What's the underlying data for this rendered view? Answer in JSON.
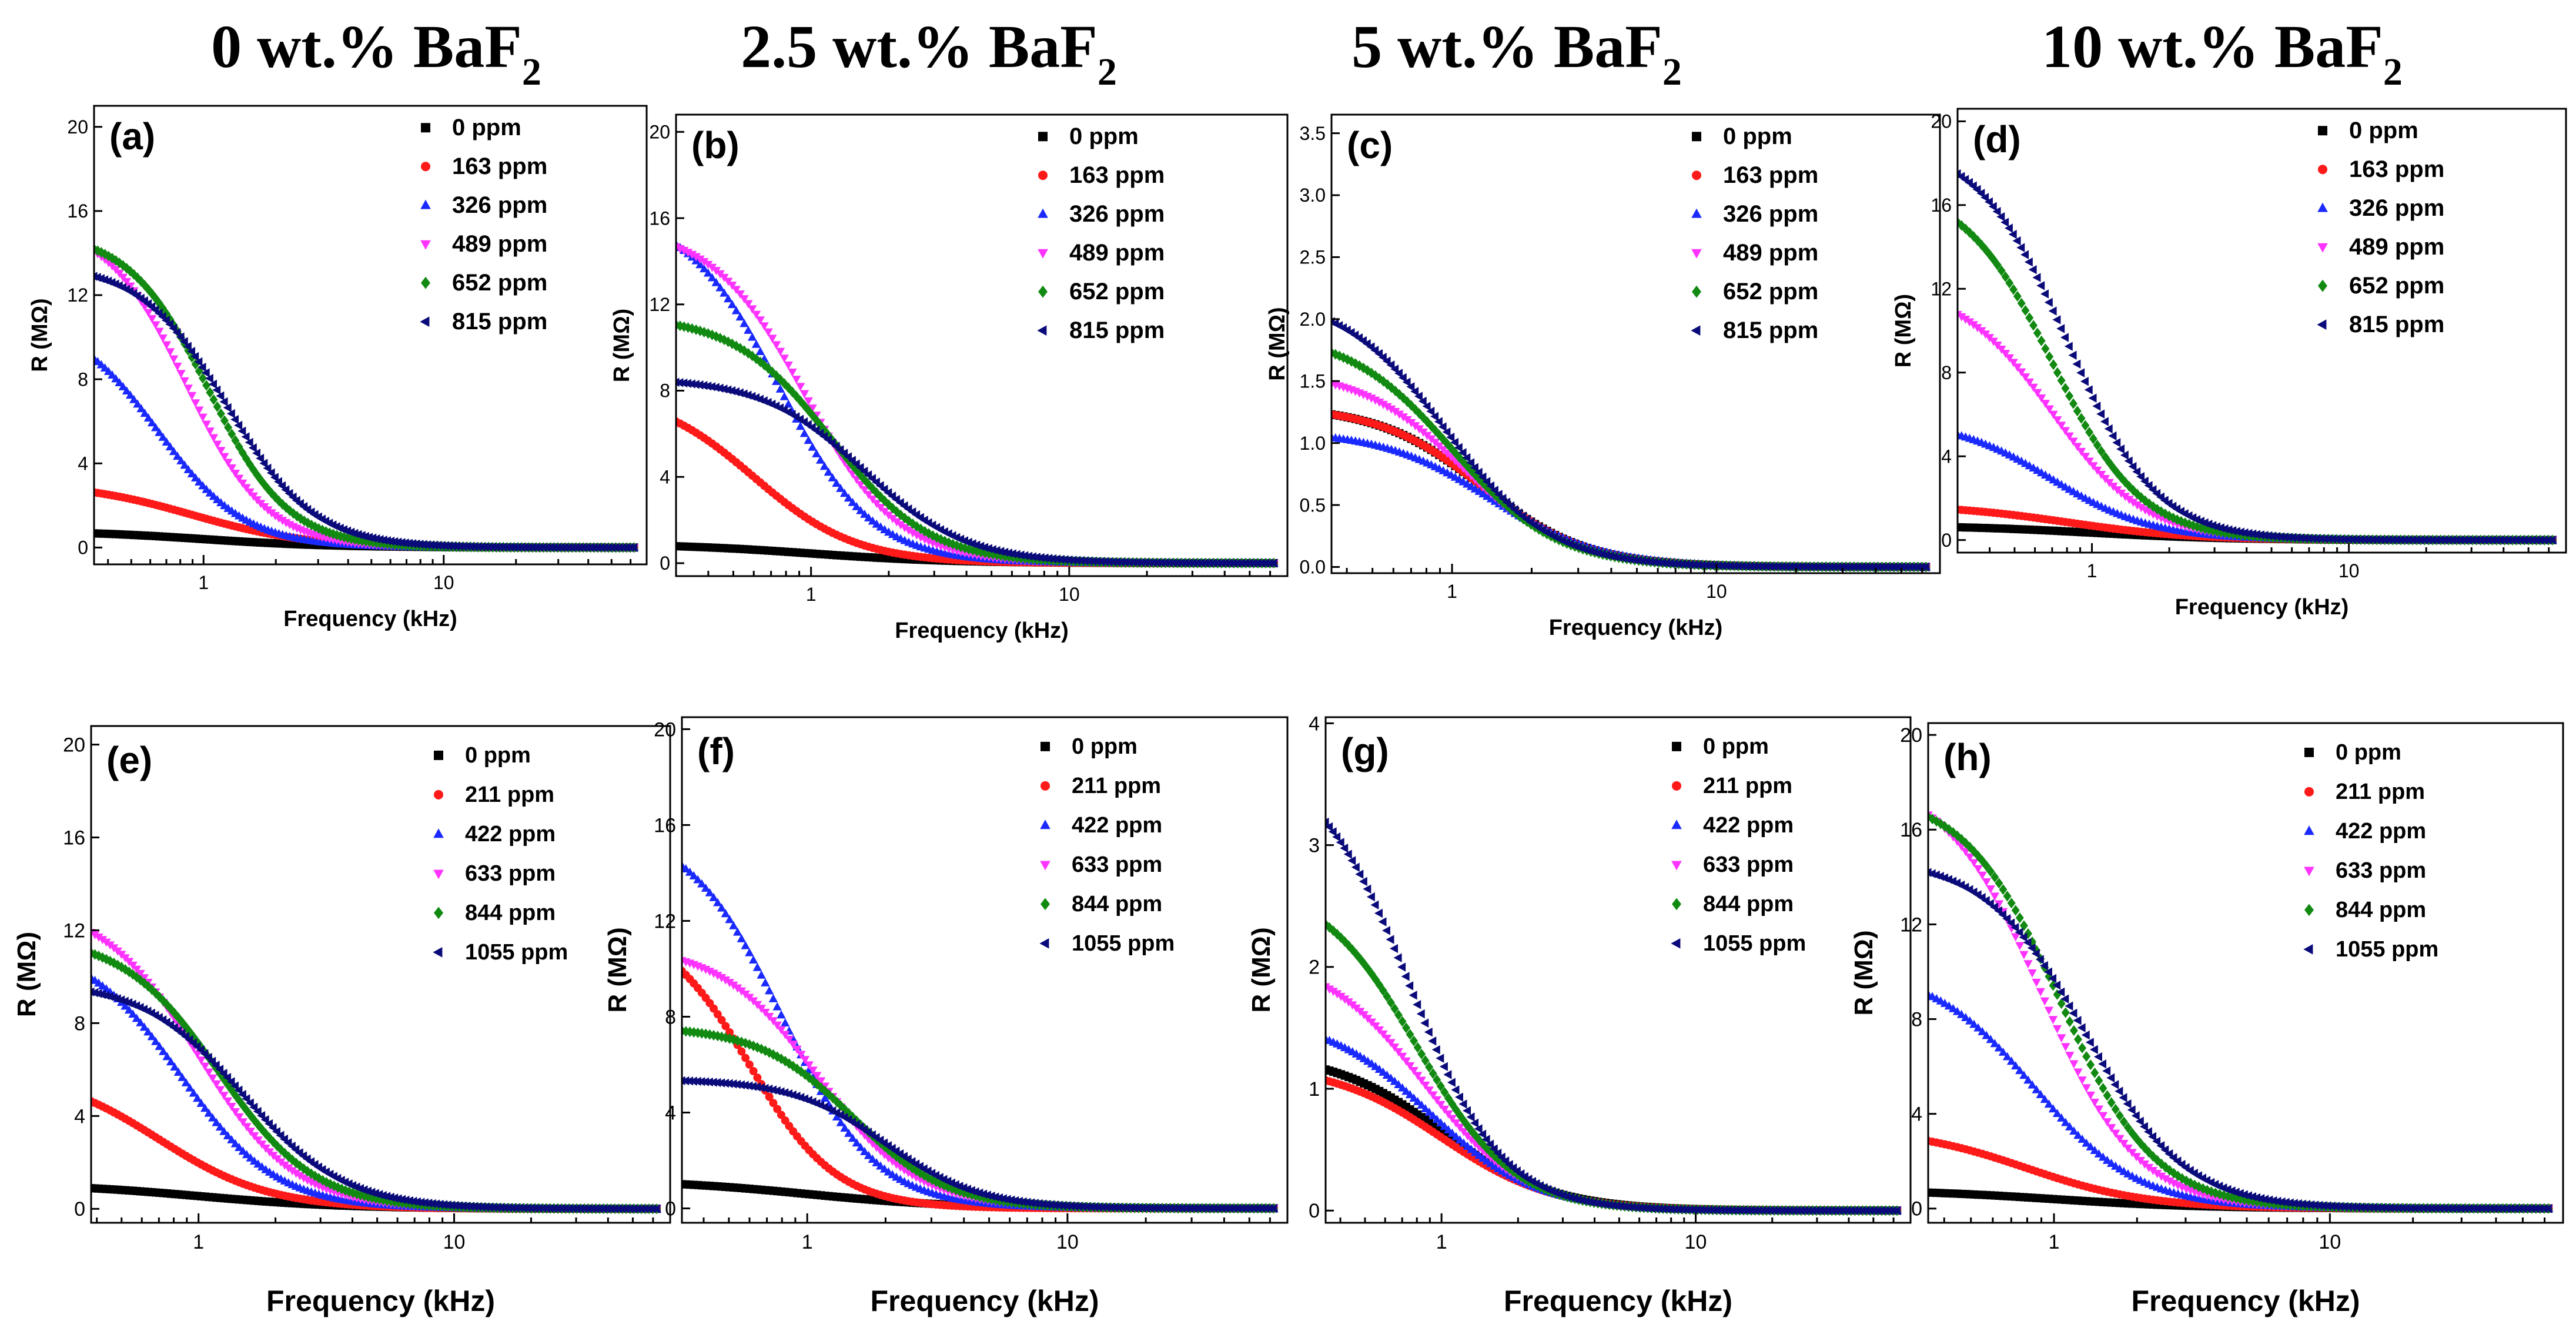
{
  "column_titles": [
    {
      "main": "0 wt.% BaF",
      "sub": "2"
    },
    {
      "main": "2.5 wt.% BaF",
      "sub": "2"
    },
    {
      "main": "5 wt.% BaF",
      "sub": "2"
    },
    {
      "main": "10 wt.% BaF",
      "sub": "2"
    }
  ],
  "series_colors": [
    "#000000",
    "#ff1a1a",
    "#1a2aff",
    "#ff33ff",
    "#128a12",
    "#0a0a7a"
  ],
  "chart_data": [
    {
      "type": "scatter",
      "label": "(a)",
      "xlabel": "Frequency (kHz)",
      "ylabel": "R (MΩ)",
      "xscale": "log",
      "xlim": [
        0.35,
        70
      ],
      "ylim": [
        -0.8,
        21
      ],
      "yticks": [
        0,
        4,
        8,
        12,
        16,
        20
      ],
      "yticklabels": [
        "0",
        "4",
        "8",
        "12",
        "16",
        "20"
      ],
      "xticks": [
        1,
        10
      ],
      "xticklabels": [
        "1",
        "10"
      ],
      "series": [
        {
          "name": "0 ppm",
          "marker": "square",
          "r0": 0.8,
          "fc": 1.0,
          "n": 1.6
        },
        {
          "name": "163 ppm",
          "marker": "circle",
          "r0": 3.1,
          "fc": 0.9,
          "n": 1.8
        },
        {
          "name": "326 ppm",
          "marker": "triangle-up",
          "r0": 11.0,
          "fc": 0.65,
          "n": 2.4
        },
        {
          "name": "489 ppm",
          "marker": "triangle-down",
          "r0": 15.5,
          "fc": 0.85,
          "n": 2.6
        },
        {
          "name": "652 ppm",
          "marker": "diamond",
          "r0": 15.0,
          "fc": 1.05,
          "n": 2.6
        },
        {
          "name": "815 ppm",
          "marker": "triangle-left",
          "r0": 13.5,
          "fc": 1.25,
          "n": 2.4
        }
      ]
    },
    {
      "type": "scatter",
      "label": "(b)",
      "xlabel": "Frequency (kHz)",
      "ylabel": "R (MΩ)",
      "xscale": "log",
      "xlim": [
        0.3,
        70
      ],
      "ylim": [
        -0.6,
        20.8
      ],
      "yticks": [
        0,
        4,
        8,
        12,
        16,
        20
      ],
      "yticklabels": [
        "0",
        "4",
        "8",
        "12",
        "16",
        "20"
      ],
      "xticks": [
        1,
        10
      ],
      "xticklabels": [
        "1",
        "10"
      ],
      "series": [
        {
          "name": "0 ppm",
          "marker": "square",
          "r0": 0.9,
          "fc": 1.0,
          "n": 1.6
        },
        {
          "name": "163 ppm",
          "marker": "circle",
          "r0": 8.0,
          "fc": 0.6,
          "n": 2.2
        },
        {
          "name": "326 ppm",
          "marker": "triangle-up",
          "r0": 16.4,
          "fc": 0.75,
          "n": 2.4
        },
        {
          "name": "489 ppm",
          "marker": "triangle-down",
          "r0": 15.6,
          "fc": 0.95,
          "n": 2.4
        },
        {
          "name": "652 ppm",
          "marker": "diamond",
          "r0": 11.5,
          "fc": 1.2,
          "n": 2.3
        },
        {
          "name": "815 ppm",
          "marker": "triangle-left",
          "r0": 8.6,
          "fc": 1.6,
          "n": 2.2
        }
      ]
    },
    {
      "type": "scatter",
      "label": "(c)",
      "xlabel": "Frequency (kHz)",
      "ylabel": "R (MΩ)",
      "xscale": "log",
      "xlim": [
        0.35,
        70
      ],
      "ylim": [
        -0.05,
        3.65
      ],
      "yticks": [
        0,
        0.5,
        1,
        1.5,
        2,
        2.5,
        3,
        3.5
      ],
      "yticklabels": [
        "0.0",
        "0.5",
        "1.0",
        "1.5",
        "2.0",
        "2.5",
        "3.0",
        "3.5"
      ],
      "xticks": [
        1,
        10
      ],
      "xticklabels": [
        "1",
        "10"
      ],
      "series": [
        {
          "name": "0 ppm",
          "marker": "square",
          "r0": 1.3,
          "fc": 1.3,
          "n": 2.2
        },
        {
          "name": "163 ppm",
          "marker": "circle",
          "r0": 1.3,
          "fc": 1.3,
          "n": 2.2
        },
        {
          "name": "326 ppm",
          "marker": "triangle-up",
          "r0": 1.1,
          "fc": 1.4,
          "n": 2.1
        },
        {
          "name": "489 ppm",
          "marker": "triangle-down",
          "r0": 1.6,
          "fc": 1.1,
          "n": 2.2
        },
        {
          "name": "652 ppm",
          "marker": "diamond",
          "r0": 1.9,
          "fc": 1.0,
          "n": 2.2
        },
        {
          "name": "815 ppm",
          "marker": "triangle-left",
          "r0": 2.2,
          "fc": 0.95,
          "n": 2.2
        }
      ]
    },
    {
      "type": "scatter",
      "label": "(d)",
      "xlabel": "Frequency (kHz)",
      "ylabel": "R (MΩ)",
      "xscale": "log",
      "xlim": [
        0.3,
        70
      ],
      "ylim": [
        -0.6,
        20.6
      ],
      "yticks": [
        0,
        4,
        8,
        12,
        16,
        20
      ],
      "yticklabels": [
        "0",
        "4",
        "8",
        "12",
        "16",
        "20"
      ],
      "xticks": [
        1,
        10
      ],
      "xticklabels": [
        "1",
        "10"
      ],
      "series": [
        {
          "name": "0 ppm",
          "marker": "square",
          "r0": 0.7,
          "fc": 1.0,
          "n": 1.6
        },
        {
          "name": "163 ppm",
          "marker": "circle",
          "r0": 1.7,
          "fc": 0.8,
          "n": 1.8
        },
        {
          "name": "326 ppm",
          "marker": "triangle-up",
          "r0": 5.8,
          "fc": 0.7,
          "n": 2.2
        },
        {
          "name": "489 ppm",
          "marker": "triangle-down",
          "r0": 12.2,
          "fc": 0.7,
          "n": 2.4
        },
        {
          "name": "652 ppm",
          "marker": "diamond",
          "r0": 17.0,
          "fc": 0.7,
          "n": 2.5
        },
        {
          "name": "815 ppm",
          "marker": "triangle-left",
          "r0": 19.0,
          "fc": 0.8,
          "n": 2.5
        }
      ]
    },
    {
      "type": "scatter",
      "label": "(e)",
      "xlabel": "Frequency (kHz)",
      "ylabel": "R (MΩ)",
      "xscale": "log",
      "xlim": [
        0.38,
        70
      ],
      "ylim": [
        -0.6,
        20.8
      ],
      "yticks": [
        0,
        4,
        8,
        12,
        16,
        20
      ],
      "yticklabels": [
        "0",
        "4",
        "8",
        "12",
        "16",
        "20"
      ],
      "xticks": [
        1,
        10
      ],
      "xticklabels": [
        "1",
        "10"
      ],
      "series": [
        {
          "name": "0 ppm",
          "marker": "square",
          "r0": 1.1,
          "fc": 1.0,
          "n": 1.5
        },
        {
          "name": "211 ppm",
          "marker": "circle",
          "r0": 6.0,
          "fc": 0.7,
          "n": 2.0
        },
        {
          "name": "422 ppm",
          "marker": "triangle-up",
          "r0": 11.5,
          "fc": 0.85,
          "n": 2.3
        },
        {
          "name": "633 ppm",
          "marker": "triangle-down",
          "r0": 13.2,
          "fc": 1.0,
          "n": 2.3
        },
        {
          "name": "844 ppm",
          "marker": "diamond",
          "r0": 11.8,
          "fc": 1.2,
          "n": 2.3
        },
        {
          "name": "1055 ppm",
          "marker": "triangle-left",
          "r0": 9.8,
          "fc": 1.5,
          "n": 2.2
        }
      ]
    },
    {
      "type": "scatter",
      "label": "(f)",
      "xlabel": "Frequency (kHz)",
      "ylabel": "R (MΩ)",
      "xscale": "log",
      "xlim": [
        0.33,
        70
      ],
      "ylim": [
        -0.6,
        20.5
      ],
      "yticks": [
        0,
        4,
        8,
        12,
        16,
        20
      ],
      "yticklabels": [
        "0",
        "4",
        "8",
        "12",
        "16",
        "20"
      ],
      "xticks": [
        1,
        10
      ],
      "xticklabels": [
        "1",
        "10"
      ],
      "series": [
        {
          "name": "0 ppm",
          "marker": "square",
          "r0": 1.2,
          "fc": 1.0,
          "n": 1.5
        },
        {
          "name": "211 ppm",
          "marker": "circle",
          "r0": 12.0,
          "fc": 0.6,
          "n": 2.6
        },
        {
          "name": "422 ppm",
          "marker": "triangle-up",
          "r0": 16.0,
          "fc": 0.8,
          "n": 2.4
        },
        {
          "name": "633 ppm",
          "marker": "triangle-down",
          "r0": 11.0,
          "fc": 1.1,
          "n": 2.3
        },
        {
          "name": "844 ppm",
          "marker": "diamond",
          "r0": 7.6,
          "fc": 1.5,
          "n": 2.4
        },
        {
          "name": "1055 ppm",
          "marker": "triangle-left",
          "r0": 5.4,
          "fc": 2.0,
          "n": 2.4
        }
      ]
    },
    {
      "type": "scatter",
      "label": "(g)",
      "xlabel": "Frequency (kHz)",
      "ylabel": "R (MΩ)",
      "xscale": "log",
      "xlim": [
        0.35,
        70
      ],
      "ylim": [
        -0.1,
        4.05
      ],
      "yticks": [
        0,
        1,
        2,
        3,
        4
      ],
      "yticklabels": [
        "0",
        "1",
        "2",
        "3",
        "4"
      ],
      "xticks": [
        1,
        10
      ],
      "xticklabels": [
        "1",
        "10"
      ],
      "series": [
        {
          "name": "0 ppm",
          "marker": "square",
          "r0": 1.3,
          "fc": 1.0,
          "n": 2.0
        },
        {
          "name": "211 ppm",
          "marker": "circle",
          "r0": 1.2,
          "fc": 1.0,
          "n": 2.0
        },
        {
          "name": "422 ppm",
          "marker": "triangle-up",
          "r0": 1.6,
          "fc": 0.9,
          "n": 2.1
        },
        {
          "name": "633 ppm",
          "marker": "triangle-down",
          "r0": 2.1,
          "fc": 0.85,
          "n": 2.2
        },
        {
          "name": "844 ppm",
          "marker": "diamond",
          "r0": 2.7,
          "fc": 0.8,
          "n": 2.3
        },
        {
          "name": "1055 ppm",
          "marker": "triangle-left",
          "r0": 3.7,
          "fc": 0.75,
          "n": 2.4
        }
      ]
    },
    {
      "type": "scatter",
      "label": "(h)",
      "xlabel": "Frequency (kHz)",
      "ylabel": "R (MΩ)",
      "xscale": "log",
      "xlim": [
        0.35,
        70
      ],
      "ylim": [
        -0.6,
        20.5
      ],
      "yticks": [
        0,
        4,
        8,
        12,
        16,
        20
      ],
      "yticklabels": [
        "0",
        "4",
        "8",
        "12",
        "16",
        "20"
      ],
      "xticks": [
        1,
        10
      ],
      "xticklabels": [
        "1",
        "10"
      ],
      "series": [
        {
          "name": "0 ppm",
          "marker": "square",
          "r0": 0.8,
          "fc": 1.0,
          "n": 1.6
        },
        {
          "name": "211 ppm",
          "marker": "circle",
          "r0": 3.4,
          "fc": 0.8,
          "n": 2.0
        },
        {
          "name": "422 ppm",
          "marker": "triangle-up",
          "r0": 10.2,
          "fc": 0.85,
          "n": 2.3
        },
        {
          "name": "633 ppm",
          "marker": "triangle-down",
          "r0": 18.2,
          "fc": 0.9,
          "n": 2.5
        },
        {
          "name": "844 ppm",
          "marker": "diamond",
          "r0": 17.6,
          "fc": 1.05,
          "n": 2.5
        },
        {
          "name": "1055 ppm",
          "marker": "triangle-left",
          "r0": 14.8,
          "fc": 1.3,
          "n": 2.4
        }
      ]
    }
  ]
}
